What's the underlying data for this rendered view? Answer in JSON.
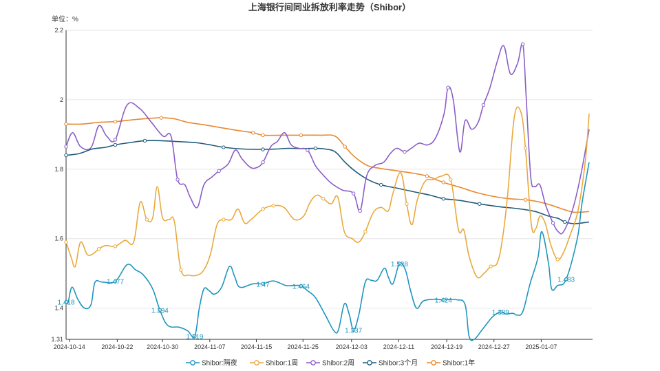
{
  "chart_data": {
    "type": "line",
    "title": "上海银行间同业拆放利率走势（Shibor）",
    "unit_label": "单位：%",
    "ylim": [
      1.31,
      2.2
    ],
    "yticks": [
      "1.31",
      "1.4",
      "1.6",
      "1.8",
      "2",
      "2.2"
    ],
    "xticks": [
      "2024-10-14",
      "2024-10-22",
      "2024-10-30",
      "2024-11-07",
      "2024-11-15",
      "2024-11-25",
      "2024-12-03",
      "2024-12-11",
      "2024-12-19",
      "2024-12-27",
      "2025-01-07"
    ],
    "grid": true,
    "legend_position": "bottom",
    "series": [
      {
        "name": "Shibor:隔夜",
        "color": "#1f95bd",
        "values": [
          [
            0,
            1.418
          ],
          [
            3,
            1.416
          ],
          [
            9,
            1.46
          ],
          [
            18,
            1.425
          ],
          [
            28,
            1.4
          ],
          [
            38,
            1.41
          ],
          [
            44,
            1.474
          ],
          [
            55,
            1.475
          ],
          [
            75,
            1.477
          ],
          [
            93,
            1.525
          ],
          [
            106,
            1.51
          ],
          [
            118,
            1.495
          ],
          [
            132,
            1.455
          ],
          [
            143,
            1.394
          ],
          [
            155,
            1.35
          ],
          [
            172,
            1.345
          ],
          [
            185,
            1.335
          ],
          [
            196,
            1.319
          ],
          [
            203,
            1.4
          ],
          [
            210,
            1.455
          ],
          [
            218,
            1.45
          ],
          [
            226,
            1.44
          ],
          [
            237,
            1.46
          ],
          [
            249,
            1.52
          ],
          [
            257,
            1.49
          ],
          [
            265,
            1.46
          ],
          [
            285,
            1.47
          ],
          [
            300,
            1.47
          ],
          [
            316,
            1.478
          ],
          [
            335,
            1.465
          ],
          [
            345,
            1.465
          ],
          [
            358,
            1.464
          ],
          [
            368,
            1.45
          ],
          [
            380,
            1.43
          ],
          [
            395,
            1.38
          ],
          [
            408,
            1.335
          ],
          [
            415,
            1.337
          ],
          [
            424,
            1.412
          ],
          [
            431,
            1.385
          ],
          [
            438,
            1.337
          ],
          [
            446,
            1.38
          ],
          [
            456,
            1.475
          ],
          [
            465,
            1.48
          ],
          [
            474,
            1.48
          ],
          [
            485,
            1.515
          ],
          [
            491,
            1.49
          ],
          [
            498,
            1.47
          ],
          [
            508,
            1.528
          ],
          [
            517,
            1.51
          ],
          [
            525,
            1.45
          ],
          [
            534,
            1.4
          ],
          [
            544,
            1.42
          ],
          [
            559,
            1.425
          ],
          [
            575,
            1.424
          ],
          [
            595,
            1.424
          ],
          [
            608,
            1.41
          ],
          [
            614,
            1.32
          ],
          [
            622,
            1.31
          ],
          [
            635,
            1.34
          ],
          [
            650,
            1.375
          ],
          [
            662,
            1.389
          ],
          [
            670,
            1.383
          ],
          [
            681,
            1.385
          ],
          [
            687,
            1.38
          ],
          [
            696,
            1.39
          ],
          [
            707,
            1.47
          ],
          [
            719,
            1.545
          ],
          [
            725,
            1.62
          ],
          [
            735,
            1.53
          ],
          [
            740,
            1.455
          ],
          [
            749,
            1.465
          ],
          [
            762,
            1.483
          ],
          [
            779,
            1.6
          ],
          [
            786,
            1.7
          ],
          [
            797,
            1.82
          ]
        ],
        "labels": [
          {
            "x": 0,
            "text": "1.418"
          },
          {
            "x": 75,
            "text": "1.477"
          },
          {
            "x": 143,
            "text": "1.394"
          },
          {
            "x": 196,
            "text": "1.319"
          },
          {
            "x": 300,
            "text": "1.47"
          },
          {
            "x": 358,
            "text": "1.464"
          },
          {
            "x": 438,
            "text": "1.337"
          },
          {
            "x": 508,
            "text": "1.528"
          },
          {
            "x": 575,
            "text": "1.424"
          },
          {
            "x": 662,
            "text": "1.389"
          },
          {
            "x": 762,
            "text": "1.483"
          }
        ]
      },
      {
        "name": "Shibor:1周",
        "color": "#e8a93c",
        "values": [
          [
            0,
            1.59
          ],
          [
            8,
            1.545
          ],
          [
            14,
            1.52
          ],
          [
            22,
            1.59
          ],
          [
            32,
            1.555
          ],
          [
            40,
            1.555
          ],
          [
            50,
            1.57
          ],
          [
            60,
            1.58
          ],
          [
            75,
            1.578
          ],
          [
            90,
            1.595
          ],
          [
            103,
            1.59
          ],
          [
            113,
            1.705
          ],
          [
            123,
            1.655
          ],
          [
            132,
            1.66
          ],
          [
            139,
            1.75
          ],
          [
            147,
            1.66
          ],
          [
            157,
            1.655
          ],
          [
            165,
            1.65
          ],
          [
            175,
            1.51
          ],
          [
            188,
            1.495
          ],
          [
            200,
            1.495
          ],
          [
            210,
            1.51
          ],
          [
            220,
            1.555
          ],
          [
            230,
            1.64
          ],
          [
            240,
            1.655
          ],
          [
            252,
            1.655
          ],
          [
            262,
            1.685
          ],
          [
            272,
            1.645
          ],
          [
            282,
            1.655
          ],
          [
            300,
            1.685
          ],
          [
            316,
            1.695
          ],
          [
            332,
            1.69
          ],
          [
            348,
            1.655
          ],
          [
            362,
            1.665
          ],
          [
            372,
            1.705
          ],
          [
            382,
            1.725
          ],
          [
            392,
            1.715
          ],
          [
            404,
            1.7
          ],
          [
            414,
            1.72
          ],
          [
            424,
            1.62
          ],
          [
            436,
            1.6
          ],
          [
            446,
            1.59
          ],
          [
            456,
            1.62
          ],
          [
            468,
            1.675
          ],
          [
            480,
            1.69
          ],
          [
            491,
            1.68
          ],
          [
            498,
            1.73
          ],
          [
            510,
            1.79
          ],
          [
            519,
            1.7
          ],
          [
            527,
            1.64
          ],
          [
            535,
            1.71
          ],
          [
            547,
            1.765
          ],
          [
            560,
            1.77
          ],
          [
            572,
            1.78
          ],
          [
            586,
            1.77
          ],
          [
            598,
            1.625
          ],
          [
            606,
            1.625
          ],
          [
            614,
            1.55
          ],
          [
            626,
            1.49
          ],
          [
            637,
            1.5
          ],
          [
            647,
            1.52
          ],
          [
            657,
            1.53
          ],
          [
            665,
            1.6
          ],
          [
            673,
            1.73
          ],
          [
            683,
            1.95
          ],
          [
            693,
            1.965
          ],
          [
            700,
            1.86
          ],
          [
            709,
            1.64
          ],
          [
            716,
            1.63
          ],
          [
            722,
            1.665
          ],
          [
            730,
            1.645
          ],
          [
            739,
            1.58
          ],
          [
            749,
            1.54
          ],
          [
            758,
            1.56
          ],
          [
            768,
            1.61
          ],
          [
            780,
            1.68
          ],
          [
            791,
            1.82
          ],
          [
            797,
            1.96
          ]
        ]
      },
      {
        "name": "Shibor:2周",
        "color": "#8a5ec7",
        "values": [
          [
            0,
            1.865
          ],
          [
            10,
            1.905
          ],
          [
            22,
            1.865
          ],
          [
            38,
            1.862
          ],
          [
            50,
            1.925
          ],
          [
            62,
            1.895
          ],
          [
            75,
            1.885
          ],
          [
            93,
            1.985
          ],
          [
            112,
            1.975
          ],
          [
            130,
            1.935
          ],
          [
            148,
            1.895
          ],
          [
            160,
            1.895
          ],
          [
            170,
            1.77
          ],
          [
            181,
            1.755
          ],
          [
            189,
            1.72
          ],
          [
            200,
            1.69
          ],
          [
            210,
            1.755
          ],
          [
            222,
            1.777
          ],
          [
            233,
            1.795
          ],
          [
            247,
            1.815
          ],
          [
            258,
            1.855
          ],
          [
            268,
            1.83
          ],
          [
            281,
            1.805
          ],
          [
            291,
            1.805
          ],
          [
            300,
            1.82
          ],
          [
            312,
            1.865
          ],
          [
            322,
            1.88
          ],
          [
            333,
            1.905
          ],
          [
            343,
            1.87
          ],
          [
            355,
            1.86
          ],
          [
            368,
            1.855
          ],
          [
            380,
            1.81
          ],
          [
            391,
            1.785
          ],
          [
            404,
            1.76
          ],
          [
            421,
            1.74
          ],
          [
            438,
            1.73
          ],
          [
            448,
            1.68
          ],
          [
            458,
            1.78
          ],
          [
            470,
            1.81
          ],
          [
            484,
            1.82
          ],
          [
            494,
            1.845
          ],
          [
            504,
            1.86
          ],
          [
            516,
            1.85
          ],
          [
            526,
            1.86
          ],
          [
            538,
            1.875
          ],
          [
            551,
            1.87
          ],
          [
            563,
            1.89
          ],
          [
            576,
            1.96
          ],
          [
            582,
            2.035
          ],
          [
            590,
            2.0
          ],
          [
            600,
            1.85
          ],
          [
            608,
            1.94
          ],
          [
            618,
            1.915
          ],
          [
            628,
            1.935
          ],
          [
            636,
            1.985
          ],
          [
            646,
            2.035
          ],
          [
            657,
            2.11
          ],
          [
            667,
            2.155
          ],
          [
            677,
            2.075
          ],
          [
            688,
            2.105
          ],
          [
            696,
            2.16
          ],
          [
            701,
            2.01
          ],
          [
            708,
            1.78
          ],
          [
            714,
            1.75
          ],
          [
            722,
            1.755
          ],
          [
            731,
            1.695
          ],
          [
            742,
            1.645
          ],
          [
            750,
            1.62
          ],
          [
            758,
            1.62
          ],
          [
            772,
            1.685
          ],
          [
            784,
            1.78
          ],
          [
            797,
            1.915
          ]
        ]
      },
      {
        "name": "Shibor:3个月",
        "color": "#1e5a7a",
        "values": [
          [
            0,
            1.84
          ],
          [
            20,
            1.845
          ],
          [
            40,
            1.858
          ],
          [
            60,
            1.863
          ],
          [
            75,
            1.87
          ],
          [
            95,
            1.876
          ],
          [
            120,
            1.882
          ],
          [
            145,
            1.882
          ],
          [
            165,
            1.88
          ],
          [
            185,
            1.878
          ],
          [
            200,
            1.876
          ],
          [
            220,
            1.87
          ],
          [
            240,
            1.863
          ],
          [
            270,
            1.858
          ],
          [
            300,
            1.857
          ],
          [
            320,
            1.858
          ],
          [
            340,
            1.86
          ],
          [
            360,
            1.859
          ],
          [
            380,
            1.86
          ],
          [
            395,
            1.858
          ],
          [
            410,
            1.85
          ],
          [
            425,
            1.82
          ],
          [
            440,
            1.795
          ],
          [
            460,
            1.77
          ],
          [
            480,
            1.755
          ],
          [
            505,
            1.745
          ],
          [
            530,
            1.735
          ],
          [
            555,
            1.725
          ],
          [
            575,
            1.715
          ],
          [
            600,
            1.71
          ],
          [
            630,
            1.7
          ],
          [
            660,
            1.692
          ],
          [
            690,
            1.686
          ],
          [
            715,
            1.678
          ],
          [
            735,
            1.665
          ],
          [
            750,
            1.658
          ],
          [
            760,
            1.648
          ],
          [
            775,
            1.643
          ],
          [
            797,
            1.648
          ]
        ]
      },
      {
        "name": "Shibor:1年",
        "color": "#e8892f",
        "values": [
          [
            0,
            1.93
          ],
          [
            25,
            1.93
          ],
          [
            50,
            1.935
          ],
          [
            75,
            1.937
          ],
          [
            100,
            1.942
          ],
          [
            125,
            1.946
          ],
          [
            145,
            1.948
          ],
          [
            165,
            1.945
          ],
          [
            185,
            1.935
          ],
          [
            210,
            1.928
          ],
          [
            235,
            1.92
          ],
          [
            260,
            1.912
          ],
          [
            285,
            1.905
          ],
          [
            300,
            1.898
          ],
          [
            330,
            1.898
          ],
          [
            358,
            1.898
          ],
          [
            390,
            1.898
          ],
          [
            410,
            1.895
          ],
          [
            425,
            1.865
          ],
          [
            440,
            1.835
          ],
          [
            460,
            1.81
          ],
          [
            480,
            1.802
          ],
          [
            505,
            1.795
          ],
          [
            530,
            1.788
          ],
          [
            550,
            1.78
          ],
          [
            575,
            1.762
          ],
          [
            600,
            1.748
          ],
          [
            625,
            1.733
          ],
          [
            650,
            1.722
          ],
          [
            675,
            1.715
          ],
          [
            700,
            1.712
          ],
          [
            720,
            1.706
          ],
          [
            740,
            1.696
          ],
          [
            760,
            1.683
          ],
          [
            775,
            1.676
          ],
          [
            797,
            1.678
          ]
        ]
      }
    ]
  }
}
